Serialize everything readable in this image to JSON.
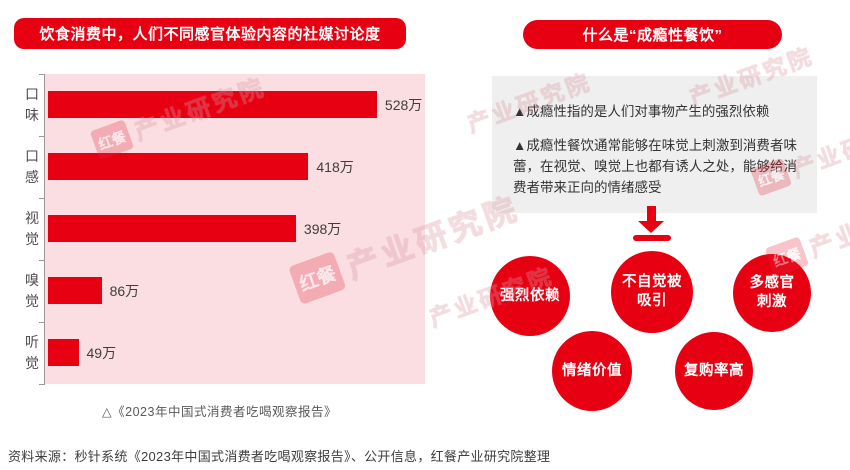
{
  "colors": {
    "red": "#e60012",
    "pink": "#fadee2",
    "box_gray": "#efefef"
  },
  "left": {
    "header": "饮食消费中，人们不同感官体验内容的社媒讨论度",
    "caption": "△《2023年中国式消费者吃喝观察报告》"
  },
  "chart_data": {
    "type": "bar",
    "orientation": "horizontal",
    "title": "饮食消费中，人们不同感官体验内容的社媒讨论度",
    "categories": [
      "口味",
      "口感",
      "视觉",
      "嗅觉",
      "听觉"
    ],
    "values": [
      528,
      418,
      398,
      86,
      49
    ],
    "unit": "万",
    "value_labels": [
      "528万",
      "418万",
      "398万",
      "86万",
      "49万"
    ],
    "xlim": [
      0,
      610
    ],
    "grid": false,
    "legend": "none",
    "bar_color": "#e60012",
    "plot_background": "#fadee2",
    "source_note": "△《2023年中国式消费者吃喝观察报告》"
  },
  "right": {
    "header": "什么是“成瘾性餐饮”",
    "bullets": [
      "▲成瘾性指的是人们对事物产生的强烈依赖",
      "▲成瘾性餐饮通常能够在味觉上刺激到消费者味蕾，在视觉、嗅觉上也都有诱人之处，能够给消费者带来正向的情绪感受"
    ],
    "arrow_icon": "down-arrow-to-bar",
    "circles": [
      {
        "lines": [
          "强烈依赖"
        ]
      },
      {
        "lines": [
          "不自觉被",
          "吸引"
        ]
      },
      {
        "lines": [
          "多感官",
          "刺激"
        ]
      },
      {
        "lines": [
          "情绪价值"
        ]
      },
      {
        "lines": [
          "复购率高"
        ]
      }
    ]
  },
  "footer": "资料来源：秒针系统《2023年中国式消费者吃喝观察报告》、公开信息，红餐产业研究院整理",
  "watermark": {
    "brand": "红餐",
    "text": "产业研究院"
  }
}
